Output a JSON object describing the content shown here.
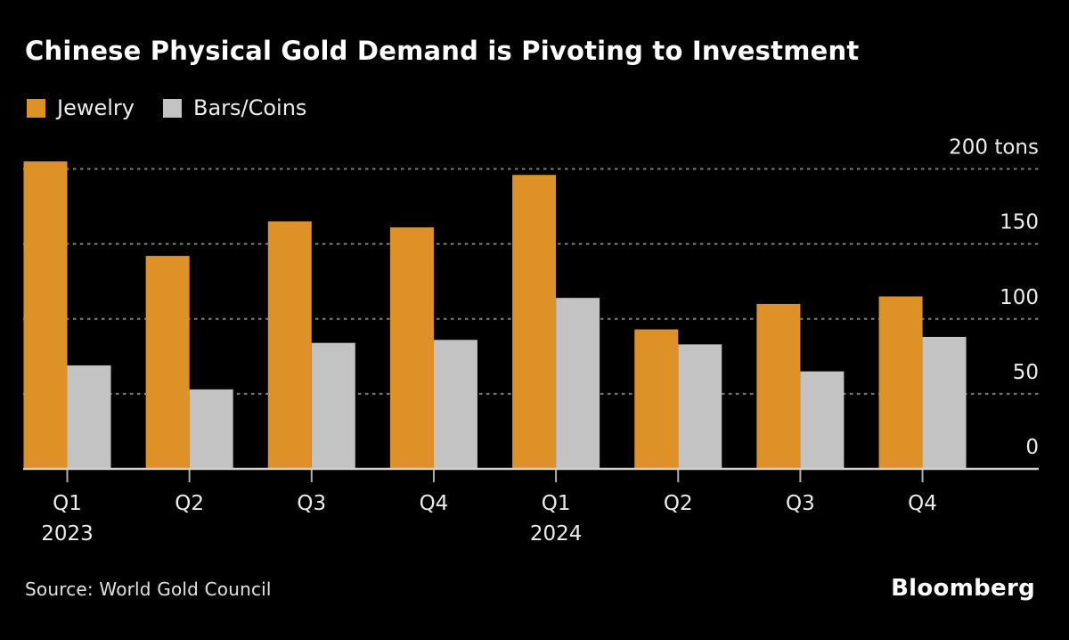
{
  "title": "Chinese Physical Gold Demand is Pivoting to Investment",
  "legend": {
    "items": [
      {
        "label": "Jewelry",
        "color": "#DE9126"
      },
      {
        "label": "Bars/Coins",
        "color": "#C3C3C3"
      }
    ]
  },
  "footer": {
    "source": "Source: World Gold Council",
    "brand": "Bloomberg"
  },
  "colors": {
    "background": "#000000",
    "title_text": "#FFFFFF",
    "label_text": "#ECECEC",
    "gridline": "#7C7C7C",
    "axis_line": "#D2D2D2",
    "tick_mark": "#AFAFAF",
    "jewelry": "#DE9126",
    "bars_coins": "#C3C3C3"
  },
  "chart_data": {
    "type": "bar",
    "title": "Chinese Physical Gold Demand is Pivoting to Investment",
    "unit": "tons",
    "categories": [
      {
        "quarter": "Q1",
        "year": "2023"
      },
      {
        "quarter": "Q2"
      },
      {
        "quarter": "Q3"
      },
      {
        "quarter": "Q4"
      },
      {
        "quarter": "Q1",
        "year": "2024"
      },
      {
        "quarter": "Q2"
      },
      {
        "quarter": "Q3"
      },
      {
        "quarter": "Q4"
      }
    ],
    "series": [
      {
        "name": "Jewelry",
        "color": "#DE9126",
        "values": [
          205,
          142,
          165,
          161,
          196,
          93,
          110,
          115
        ]
      },
      {
        "name": "Bars/Coins",
        "color": "#C3C3C3",
        "values": [
          69,
          53,
          84,
          86,
          114,
          83,
          65,
          88
        ]
      }
    ],
    "y_ticks": [
      {
        "value": 0,
        "label": "0"
      },
      {
        "value": 50,
        "label": "50"
      },
      {
        "value": 100,
        "label": "100"
      },
      {
        "value": 150,
        "label": "150"
      },
      {
        "value": 200,
        "label": "200 tons"
      }
    ],
    "ylim": [
      0,
      210
    ],
    "xlabel": "",
    "ylabel": "tons",
    "grid": "dashed-horizontal",
    "legend_position": "top-left",
    "y_axis_side": "right"
  }
}
